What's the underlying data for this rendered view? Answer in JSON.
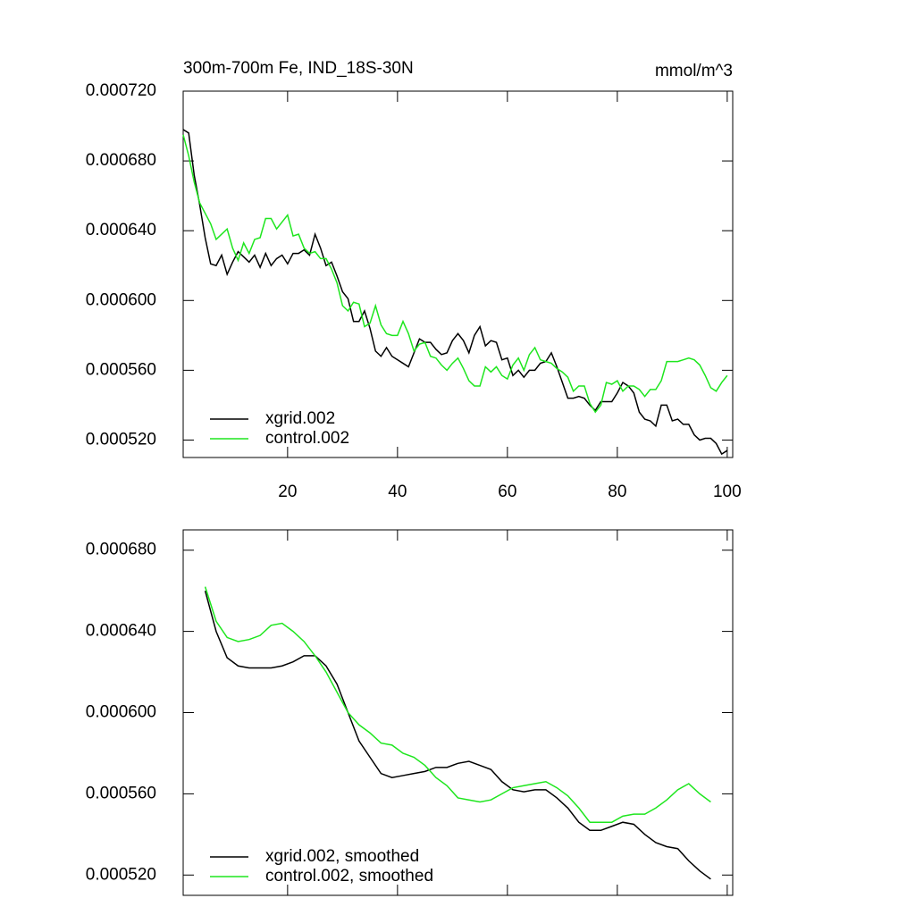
{
  "chart_data": [
    {
      "type": "line",
      "title": "300m-700m Fe, IND_18S-30N",
      "units": "mmol/m^3",
      "x": [
        1,
        2,
        3,
        4,
        5,
        6,
        7,
        8,
        9,
        10,
        11,
        12,
        13,
        14,
        15,
        16,
        17,
        18,
        19,
        20,
        21,
        22,
        23,
        24,
        25,
        26,
        27,
        28,
        29,
        30,
        31,
        32,
        33,
        34,
        35,
        36,
        37,
        38,
        39,
        40,
        41,
        42,
        43,
        44,
        45,
        46,
        47,
        48,
        49,
        50,
        51,
        52,
        53,
        54,
        55,
        56,
        57,
        58,
        59,
        60,
        61,
        62,
        63,
        64,
        65,
        66,
        67,
        68,
        69,
        70,
        71,
        72,
        73,
        74,
        75,
        76,
        77,
        78,
        79,
        80,
        81,
        82,
        83,
        84,
        85,
        86,
        87,
        88,
        89,
        90,
        91,
        92,
        93,
        94,
        95,
        96,
        97,
        98,
        99,
        100
      ],
      "series": [
        {
          "name": "xgrid.002",
          "color": "#000000",
          "values": [
            0.000698,
            0.000696,
            0.000672,
            0.000655,
            0.000636,
            0.000621,
            0.00062,
            0.000626,
            0.000615,
            0.000622,
            0.000628,
            0.000625,
            0.000622,
            0.000626,
            0.000619,
            0.000627,
            0.00062,
            0.000624,
            0.000626,
            0.000621,
            0.000627,
            0.000627,
            0.000629,
            0.000626,
            0.000638,
            0.00063,
            0.00062,
            0.000622,
            0.000614,
            0.000605,
            0.000601,
            0.000588,
            0.000588,
            0.000594,
            0.000584,
            0.000571,
            0.000568,
            0.000573,
            0.000568,
            0.000566,
            0.000564,
            0.000562,
            0.00057,
            0.000578,
            0.000576,
            0.000576,
            0.000572,
            0.000569,
            0.00057,
            0.000577,
            0.000581,
            0.000577,
            0.00057,
            0.00058,
            0.000585,
            0.000574,
            0.000577,
            0.000576,
            0.000566,
            0.000567,
            0.000557,
            0.00056,
            0.000556,
            0.00056,
            0.00056,
            0.000564,
            0.000565,
            0.00057,
            0.000562,
            0.000553,
            0.000544,
            0.000544,
            0.000545,
            0.000544,
            0.00054,
            0.000537,
            0.000542,
            0.000542,
            0.000542,
            0.000547,
            0.000553,
            0.000551,
            0.000547,
            0.000536,
            0.000532,
            0.000531,
            0.000528,
            0.00054,
            0.00054,
            0.000531,
            0.000532,
            0.000529,
            0.000529,
            0.000523,
            0.00052,
            0.000521,
            0.000521,
            0.000518,
            0.000512,
            0.000514
          ]
        },
        {
          "name": "control.002",
          "color": "#1ee61e",
          "values": [
            0.000695,
            0.000683,
            0.000668,
            0.000656,
            0.00065,
            0.000644,
            0.000635,
            0.000638,
            0.000641,
            0.00063,
            0.000623,
            0.000633,
            0.000627,
            0.000635,
            0.000636,
            0.000647,
            0.000647,
            0.000641,
            0.000645,
            0.000649,
            0.000637,
            0.000638,
            0.00063,
            0.000627,
            0.000628,
            0.000624,
            0.000624,
            0.000618,
            0.00061,
            0.000597,
            0.000594,
            0.000599,
            0.000598,
            0.000585,
            0.000587,
            0.000597,
            0.000586,
            0.000581,
            0.00058,
            0.00058,
            0.000588,
            0.000581,
            0.000571,
            0.000575,
            0.000576,
            0.000568,
            0.000567,
            0.000563,
            0.00056,
            0.000564,
            0.000567,
            0.000561,
            0.000554,
            0.000551,
            0.000551,
            0.000562,
            0.000559,
            0.000562,
            0.000557,
            0.000555,
            0.000563,
            0.000567,
            0.00056,
            0.000569,
            0.000573,
            0.000566,
            0.000565,
            0.000564,
            0.000561,
            0.000559,
            0.000556,
            0.000548,
            0.000551,
            0.000551,
            0.000541,
            0.000536,
            0.00054,
            0.000553,
            0.000552,
            0.000554,
            0.000548,
            0.000551,
            0.000551,
            0.000549,
            0.000545,
            0.000549,
            0.000549,
            0.000554,
            0.000565,
            0.000565,
            0.000565,
            0.000566,
            0.000567,
            0.000566,
            0.000563,
            0.000557,
            0.00055,
            0.000548,
            0.000553,
            0.000557
          ]
        }
      ],
      "xlim": [
        1,
        101
      ],
      "xticks": [
        20,
        40,
        60,
        80,
        100
      ],
      "ylim": [
        0.00051,
        0.00072
      ],
      "yticks": [
        {
          "value": 0.00052,
          "label": "0.000520"
        },
        {
          "value": 0.00056,
          "label": "0.000560"
        },
        {
          "value": 0.0006,
          "label": "0.000600"
        },
        {
          "value": 0.00064,
          "label": "0.000640"
        },
        {
          "value": 0.00068,
          "label": "0.000680"
        },
        {
          "value": 0.00072,
          "label": "0.000720"
        }
      ],
      "legend": "lower left"
    },
    {
      "type": "line",
      "x": [
        5,
        7,
        9,
        11,
        13,
        15,
        17,
        19,
        21,
        23,
        25,
        27,
        29,
        31,
        33,
        35,
        37,
        39,
        41,
        43,
        45,
        47,
        49,
        51,
        53,
        55,
        57,
        59,
        61,
        63,
        65,
        67,
        69,
        71,
        73,
        75,
        77,
        79,
        81,
        83,
        85,
        87,
        89,
        91,
        93,
        95,
        97
      ],
      "series": [
        {
          "name": "xgrid.002, smoothed",
          "color": "#000000",
          "values": [
            0.00066,
            0.00064,
            0.000627,
            0.000623,
            0.000622,
            0.000622,
            0.000622,
            0.000623,
            0.000625,
            0.000628,
            0.000628,
            0.000623,
            0.000614,
            0.0006,
            0.000586,
            0.000578,
            0.00057,
            0.000568,
            0.000569,
            0.00057,
            0.000571,
            0.000573,
            0.000573,
            0.000575,
            0.000576,
            0.000574,
            0.000572,
            0.000566,
            0.000562,
            0.000561,
            0.000562,
            0.000562,
            0.000558,
            0.000553,
            0.000546,
            0.000542,
            0.000542,
            0.000544,
            0.000546,
            0.000545,
            0.00054,
            0.000536,
            0.000534,
            0.000533,
            0.000527,
            0.000522,
            0.000518
          ]
        },
        {
          "name": "control.002, smoothed",
          "color": "#1ee61e",
          "values": [
            0.000662,
            0.000645,
            0.000637,
            0.000635,
            0.000636,
            0.000638,
            0.000643,
            0.000644,
            0.00064,
            0.000635,
            0.000628,
            0.00062,
            0.00061,
            0.0006,
            0.000594,
            0.00059,
            0.000585,
            0.000584,
            0.00058,
            0.000578,
            0.000574,
            0.000568,
            0.000564,
            0.000558,
            0.000557,
            0.000556,
            0.000557,
            0.00056,
            0.000563,
            0.000564,
            0.000565,
            0.000566,
            0.000563,
            0.000559,
            0.000553,
            0.000546,
            0.000546,
            0.000546,
            0.000549,
            0.00055,
            0.00055,
            0.000553,
            0.000557,
            0.000562,
            0.000565,
            0.00056,
            0.000556
          ]
        }
      ],
      "xlim": [
        1,
        101
      ],
      "xticks": [
        20,
        40,
        60,
        80,
        100
      ],
      "ylim": [
        0.00051,
        0.00069
      ],
      "yticks": [
        {
          "value": 0.00052,
          "label": "0.000520"
        },
        {
          "value": 0.00056,
          "label": "0.000560"
        },
        {
          "value": 0.0006,
          "label": "0.000600"
        },
        {
          "value": 0.00064,
          "label": "0.000640"
        },
        {
          "value": 0.00068,
          "label": "0.000680"
        }
      ],
      "legend": "lower left"
    }
  ]
}
